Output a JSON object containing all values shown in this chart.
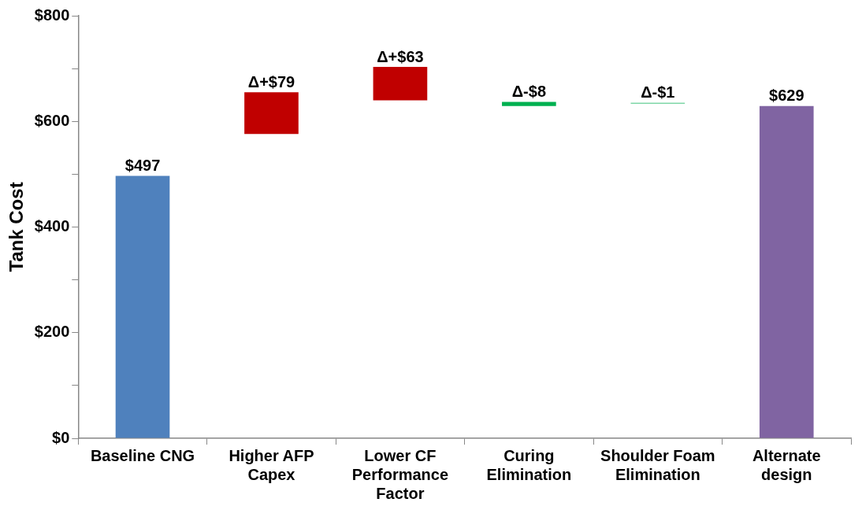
{
  "chart_data": {
    "type": "bar",
    "ylabel": "Tank Cost",
    "categories": [
      "Baseline CNG",
      "Higher AFP Capex",
      "Lower CF Performance Factor",
      "Curing Elimination",
      "Shoulder Foam Elimination",
      "Alternate design"
    ],
    "values": [
      497,
      79,
      63,
      -8,
      -1,
      629
    ],
    "base": [
      0,
      576,
      640,
      637,
      635,
      0
    ],
    "colors": [
      "#4f81bd",
      "#c00000",
      "#c00000",
      "#00b050",
      "#00b050",
      "#8064a2"
    ],
    "value_labels": [
      "$497",
      "Δ+$79",
      "Δ+$63",
      "Δ-$8",
      "Δ-$1",
      "$629"
    ],
    "ylim": [
      0,
      800
    ],
    "yticks": [
      {
        "value": 0,
        "label": "$0"
      },
      {
        "value": 100,
        "label": null
      },
      {
        "value": 200,
        "label": "$200"
      },
      {
        "value": 300,
        "label": null
      },
      {
        "value": 400,
        "label": "$400"
      },
      {
        "value": 500,
        "label": null
      },
      {
        "value": 600,
        "label": "$600"
      },
      {
        "value": 700,
        "label": null
      },
      {
        "value": 800,
        "label": "$800"
      }
    ],
    "grid": false,
    "legend": false
  }
}
